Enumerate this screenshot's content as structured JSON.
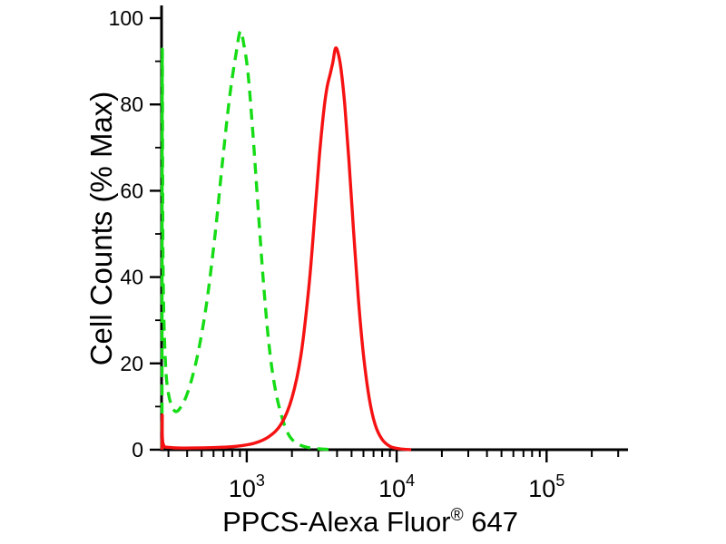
{
  "page": {
    "background": "#ffffff"
  },
  "chart_data": {
    "type": "line",
    "chart_kind": "flow-cytometry-overlay-histogram",
    "title": "",
    "xlabel": "PPCS-Alexa Fluor® 647",
    "xlabel_parts": {
      "prefix": "PPCS-Alexa Fluor",
      "registered_sup": "®",
      "suffix": " 647"
    },
    "ylabel": "Cell Counts (% Max)",
    "x_scale": "log",
    "x_range": [
      270,
      330000
    ],
    "y_range": [
      0,
      100
    ],
    "y_ticks": [
      0,
      20,
      40,
      60,
      80,
      100
    ],
    "y_minor_tick_step": 10,
    "x_ticks": [
      {
        "value": 1000,
        "label_base": "10",
        "label_exp": "3"
      },
      {
        "value": 10000,
        "label_base": "10",
        "label_exp": "4"
      },
      {
        "value": 100000,
        "label_base": "10",
        "label_exp": "5"
      }
    ],
    "x_minor_ticks_per_decade": [
      2,
      3,
      4,
      5,
      6,
      7,
      8,
      9
    ],
    "grid": false,
    "legend": null,
    "axis_color": "#000000",
    "background": "#ffffff",
    "series": [
      {
        "name": "green-dashed",
        "color": "#15dc15",
        "line_style": "dashed",
        "dash_pattern": "12 8",
        "stroke_width": 3.4,
        "points": [
          [
            272,
            0
          ],
          [
            273,
            92
          ],
          [
            276,
            44
          ],
          [
            285,
            22
          ],
          [
            300,
            13
          ],
          [
            330,
            9
          ],
          [
            365,
            10
          ],
          [
            410,
            14
          ],
          [
            470,
            22
          ],
          [
            540,
            34
          ],
          [
            615,
            50
          ],
          [
            690,
            67
          ],
          [
            770,
            82
          ],
          [
            850,
            92
          ],
          [
            905,
            97
          ],
          [
            955,
            94
          ],
          [
            1020,
            87
          ],
          [
            1100,
            73
          ],
          [
            1190,
            56
          ],
          [
            1290,
            39
          ],
          [
            1400,
            25
          ],
          [
            1530,
            15
          ],
          [
            1700,
            8
          ],
          [
            1900,
            3.5
          ],
          [
            2150,
            1.5
          ],
          [
            2500,
            0.6
          ],
          [
            3000,
            0.2
          ],
          [
            3800,
            0
          ]
        ]
      },
      {
        "name": "red-solid",
        "color": "#f61212",
        "line_style": "solid",
        "dash_pattern": null,
        "stroke_width": 3.4,
        "points": [
          [
            272,
            0
          ],
          [
            273,
            8
          ],
          [
            276,
            1.5
          ],
          [
            310,
            0.5
          ],
          [
            430,
            0.4
          ],
          [
            620,
            0.5
          ],
          [
            860,
            0.8
          ],
          [
            1120,
            1.5
          ],
          [
            1400,
            3
          ],
          [
            1700,
            6
          ],
          [
            2000,
            12
          ],
          [
            2300,
            22
          ],
          [
            2600,
            38
          ],
          [
            2850,
            55
          ],
          [
            3050,
            68
          ],
          [
            3250,
            78
          ],
          [
            3430,
            84
          ],
          [
            3600,
            87
          ],
          [
            3760,
            90
          ],
          [
            3900,
            93
          ],
          [
            4060,
            92
          ],
          [
            4260,
            88
          ],
          [
            4500,
            80
          ],
          [
            4800,
            67
          ],
          [
            5150,
            51
          ],
          [
            5550,
            35
          ],
          [
            6000,
            22
          ],
          [
            6550,
            12
          ],
          [
            7150,
            6
          ],
          [
            7950,
            2.5
          ],
          [
            9000,
            0.8
          ],
          [
            10500,
            0.2
          ],
          [
            12500,
            0
          ]
        ]
      }
    ]
  }
}
